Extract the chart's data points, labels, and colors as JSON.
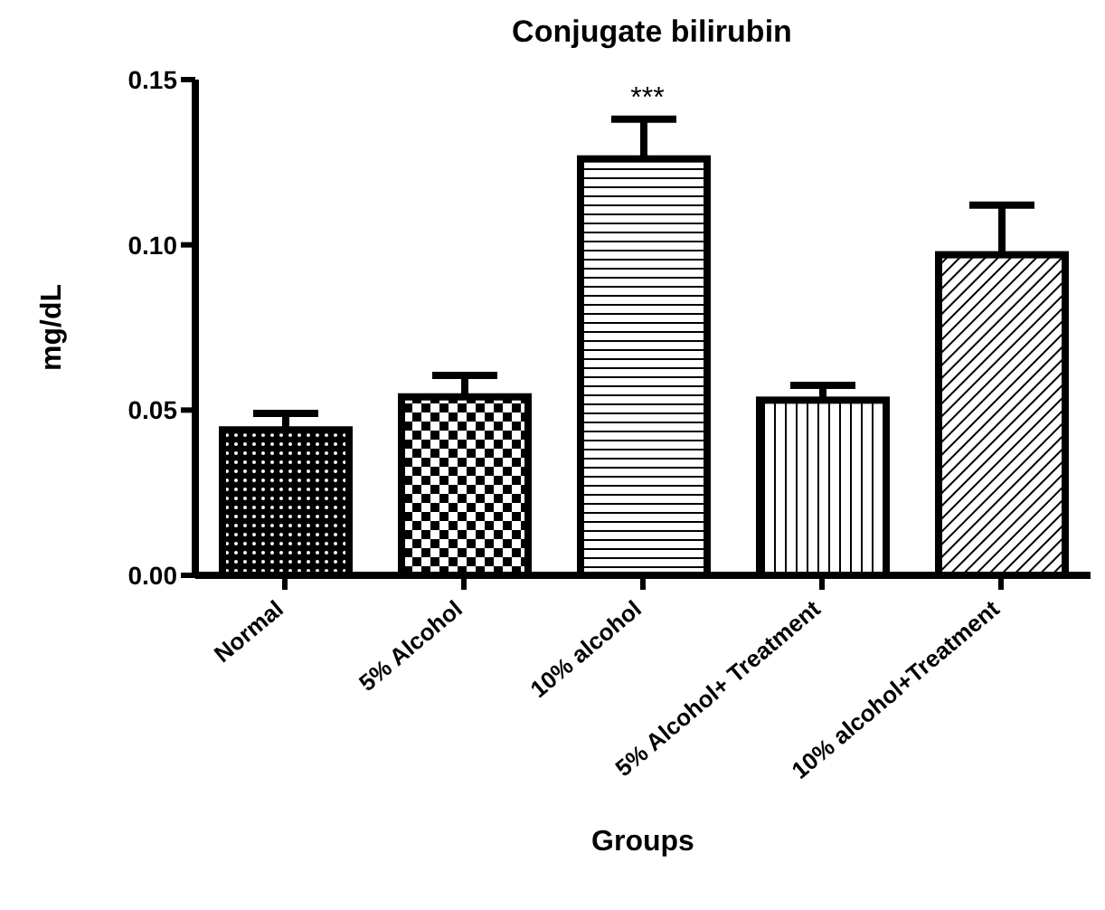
{
  "chart_data": {
    "type": "bar",
    "title": "Conjugate bilirubin",
    "xlabel": "Groups",
    "ylabel": "mg/dL",
    "categories": [
      "Normal",
      "5% Alcohol",
      "10% alcohol",
      "5% Alcohol+ Treatment",
      "10% alcohol+Treatment"
    ],
    "values": [
      0.044,
      0.054,
      0.126,
      0.053,
      0.097
    ],
    "errors": [
      0.005,
      0.0065,
      0.012,
      0.0045,
      0.015
    ],
    "color": "#000000",
    "ylim": [
      0,
      0.15
    ],
    "yticks": [
      {
        "value": 0,
        "label": "0.00"
      },
      {
        "value": 0.05,
        "label": "0.05"
      },
      {
        "value": 0.1,
        "label": "0.10"
      },
      {
        "value": 0.15,
        "label": "0.15"
      }
    ],
    "annotations": [
      "***"
    ],
    "grid": false,
    "legend": false
  }
}
